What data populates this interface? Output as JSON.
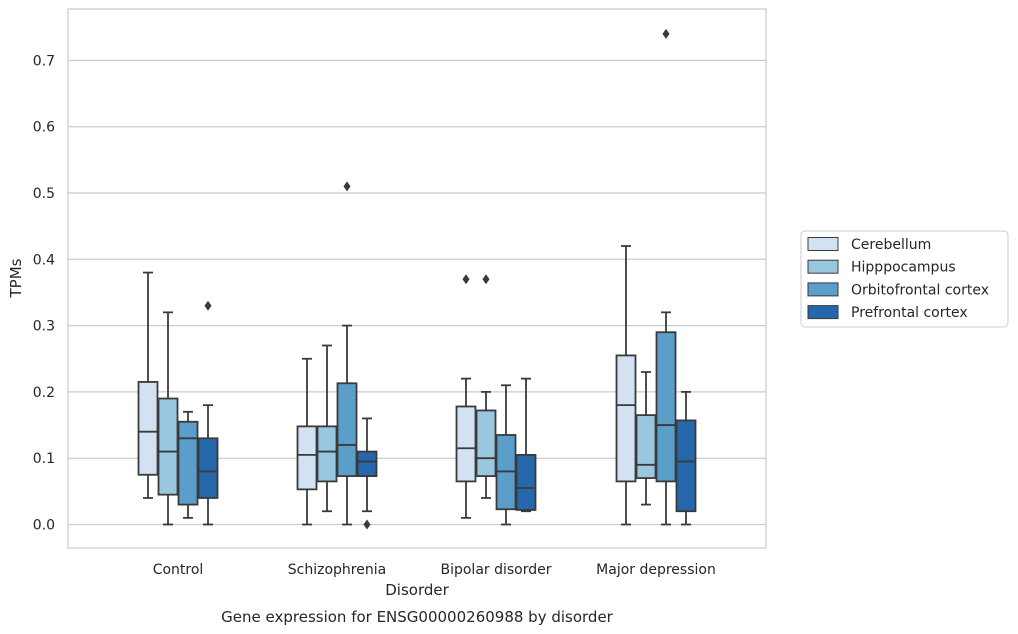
{
  "chart_data": {
    "type": "box",
    "title": "",
    "caption": "Gene expression for ENSG00000260988 by disorder",
    "xlabel": "Disorder",
    "ylabel": "TPMs",
    "ylim": [
      -0.035,
      0.775
    ],
    "yticks": [
      "0.0",
      "0.1",
      "0.2",
      "0.3",
      "0.4",
      "0.5",
      "0.6",
      "0.7"
    ],
    "ytick_values": [
      0,
      0.1,
      0.2,
      0.3,
      0.4,
      0.5,
      0.6,
      0.7
    ],
    "grid": "horizontal",
    "legend_placement": "right-outside",
    "categories": [
      "Control",
      "Schizophrenia",
      "Bipolar disorder",
      "Major depression"
    ],
    "series": [
      {
        "name": "Cerebellum",
        "color": "#d2e2f2",
        "boxes": [
          {
            "whisker_low": 0.04,
            "q1": 0.075,
            "median": 0.14,
            "q3": 0.215,
            "whisker_high": 0.38,
            "outliers": []
          },
          {
            "whisker_low": 0.0,
            "q1": 0.053,
            "median": 0.105,
            "q3": 0.148,
            "whisker_high": 0.25,
            "outliers": []
          },
          {
            "whisker_low": 0.01,
            "q1": 0.065,
            "median": 0.115,
            "q3": 0.178,
            "whisker_high": 0.22,
            "outliers": [
              0.37
            ]
          },
          {
            "whisker_low": 0.0,
            "q1": 0.065,
            "median": 0.18,
            "q3": 0.255,
            "whisker_high": 0.42,
            "outliers": []
          }
        ]
      },
      {
        "name": "Hipppocampus",
        "color": "#9ac7e0",
        "boxes": [
          {
            "whisker_low": 0.0,
            "q1": 0.045,
            "median": 0.11,
            "q3": 0.19,
            "whisker_high": 0.32,
            "outliers": []
          },
          {
            "whisker_low": 0.02,
            "q1": 0.065,
            "median": 0.11,
            "q3": 0.148,
            "whisker_high": 0.27,
            "outliers": []
          },
          {
            "whisker_low": 0.04,
            "q1": 0.073,
            "median": 0.1,
            "q3": 0.172,
            "whisker_high": 0.2,
            "outliers": [
              0.37
            ]
          },
          {
            "whisker_low": 0.03,
            "q1": 0.07,
            "median": 0.09,
            "q3": 0.165,
            "whisker_high": 0.23,
            "outliers": []
          }
        ]
      },
      {
        "name": "Orbitofrontal cortex",
        "color": "#5a9ec9",
        "boxes": [
          {
            "whisker_low": 0.01,
            "q1": 0.03,
            "median": 0.13,
            "q3": 0.155,
            "whisker_high": 0.17,
            "outliers": []
          },
          {
            "whisker_low": 0.0,
            "q1": 0.073,
            "median": 0.12,
            "q3": 0.213,
            "whisker_high": 0.3,
            "outliers": [
              0.51
            ]
          },
          {
            "whisker_low": 0.0,
            "q1": 0.023,
            "median": 0.08,
            "q3": 0.135,
            "whisker_high": 0.21,
            "outliers": []
          },
          {
            "whisker_low": 0.0,
            "q1": 0.065,
            "median": 0.15,
            "q3": 0.29,
            "whisker_high": 0.32,
            "outliers": [
              0.74
            ]
          }
        ]
      },
      {
        "name": "Prefrontal cortex",
        "color": "#2667ab",
        "boxes": [
          {
            "whisker_low": 0.0,
            "q1": 0.04,
            "median": 0.08,
            "q3": 0.13,
            "whisker_high": 0.18,
            "outliers": [
              0.33
            ]
          },
          {
            "whisker_low": 0.02,
            "q1": 0.073,
            "median": 0.095,
            "q3": 0.11,
            "whisker_high": 0.16,
            "outliers": [
              0.0
            ]
          },
          {
            "whisker_low": 0.02,
            "q1": 0.022,
            "median": 0.055,
            "q3": 0.105,
            "whisker_high": 0.22,
            "outliers": []
          },
          {
            "whisker_low": 0.0,
            "q1": 0.02,
            "median": 0.095,
            "q3": 0.157,
            "whisker_high": 0.2,
            "outliers": []
          }
        ]
      }
    ]
  }
}
